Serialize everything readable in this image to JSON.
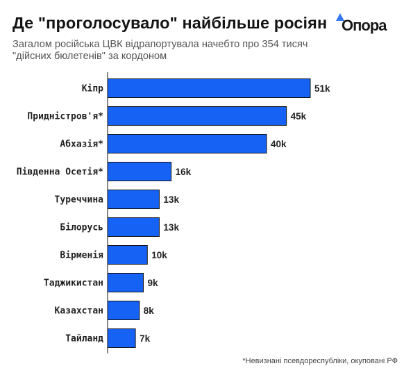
{
  "header": {
    "title": "Де \"проголосувало\" найбільше росіян",
    "subtitle_line1": "Загалом російська ЦВК відрапортувала начебто про 354 тисяч",
    "subtitle_line2": "\"дійсних бюлетенів\" за кордоном"
  },
  "brand": {
    "logo_text": "Опора",
    "accent_color": "#3578F0"
  },
  "footnote": "*Невизнані псевдореспубліки, окуповані РФ",
  "chart_data": {
    "type": "bar",
    "orientation": "horizontal",
    "title": "Де \"проголосувало\" найбільше росіян",
    "categories": [
      "Кіпр",
      "Придністров'я*",
      "Абхазія*",
      "Південна Осетія*",
      "Туреччина",
      "Білорусь",
      "Вірменія",
      "Таджикистан",
      "Казахстан",
      "Тайланд"
    ],
    "values": [
      51,
      45,
      40,
      16,
      13,
      13,
      10,
      9,
      8,
      7
    ],
    "value_labels": [
      "51k",
      "45k",
      "40k",
      "16k",
      "13k",
      "13k",
      "10k",
      "9k",
      "8k",
      "7k"
    ],
    "unit": "k",
    "bar_color": "#1662F5",
    "bar_border_color": "#111111",
    "grid": false,
    "legend": "none",
    "xlim": [
      0,
      51
    ]
  }
}
